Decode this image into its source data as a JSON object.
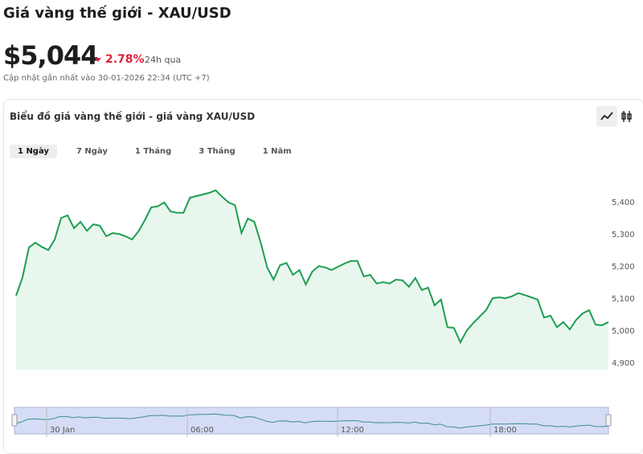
{
  "header": {
    "title": "Giá vàng thế giới - XAU/USD",
    "price": "$5,044",
    "change": "2.78%",
    "period": "24h qua",
    "updated": "Cập nhật gần nhất vào 30-01-2026 22:34 (UTC +7)"
  },
  "ranges": {
    "items": [
      "1 Ngày",
      "7 Ngày",
      "1 Tháng",
      "3 Tháng",
      "1 Năm"
    ],
    "active": 0
  },
  "navigator": {
    "labels": [
      "30 Jan",
      "06:00",
      "12:00",
      "18:00"
    ]
  },
  "chart_data": {
    "type": "line",
    "title": "Biểu đồ giá vàng thế giới - giá vàng XAU/USD",
    "color": "#1e9e52",
    "fill": "#e9f6ee",
    "values": [
      5110,
      5167,
      5260,
      5275,
      5262,
      5252,
      5285,
      5352,
      5360,
      5320,
      5340,
      5312,
      5332,
      5328,
      5295,
      5305,
      5302,
      5295,
      5285,
      5310,
      5345,
      5385,
      5388,
      5400,
      5372,
      5368,
      5368,
      5415,
      5420,
      5425,
      5430,
      5438,
      5418,
      5400,
      5392,
      5305,
      5350,
      5340,
      5275,
      5198,
      5160,
      5205,
      5212,
      5175,
      5190,
      5145,
      5185,
      5202,
      5198,
      5190,
      5200,
      5210,
      5218,
      5218,
      5170,
      5175,
      5148,
      5152,
      5148,
      5160,
      5158,
      5138,
      5165,
      5128,
      5135,
      5080,
      5098,
      5012,
      5010,
      4965,
      5002,
      5025,
      5045,
      5065,
      5102,
      5105,
      5102,
      5108,
      5118,
      5112,
      5105,
      5098,
      5042,
      5048,
      5012,
      5028,
      5005,
      5035,
      5055,
      5065,
      5020,
      5018,
      5028
    ],
    "ylim": [
      4880,
      5500
    ],
    "yticks": [
      {
        "value": 4900,
        "label": "4,900"
      },
      {
        "value": 5000,
        "label": "5,000"
      },
      {
        "value": 5100,
        "label": "5,100"
      },
      {
        "value": 5200,
        "label": "5,200"
      },
      {
        "value": 5300,
        "label": "5,300"
      },
      {
        "value": 5400,
        "label": "5,400"
      }
    ],
    "grid": false
  }
}
